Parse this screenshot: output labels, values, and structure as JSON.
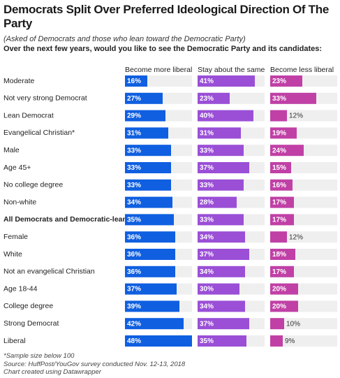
{
  "chart_data": {
    "type": "split-bar",
    "title": "Democrats Split Over Preferred Ideological Direction Of The Party",
    "subtitle": "(Asked of Democrats and those who lean toward the Democratic Party)",
    "question": "Over the next few years, would you like to see the Democratic Party and its candidates:",
    "categories": [
      "Moderate",
      "Not very strong Democrat",
      "Lean Democrat",
      "Evangelical Christian*",
      "Male",
      "Age 45+",
      "No college degree",
      "Non-white",
      "All Democrats and Democratic-leaners",
      "Female",
      "White",
      "Not an evangelical Christian",
      "Age 18-44",
      "College degree",
      "Strong Democrat",
      "Liberal"
    ],
    "highlight_index": 8,
    "series": [
      {
        "name": "Become more liberal",
        "color": "#0f5fe0",
        "values": [
          16,
          27,
          29,
          31,
          33,
          33,
          33,
          34,
          35,
          36,
          36,
          36,
          37,
          39,
          42,
          48
        ],
        "value_labels": [
          "16%",
          "27%",
          "29%",
          "31%",
          "33%",
          "33%",
          "33%",
          "34%",
          "35%",
          "36%",
          "36%",
          "36%",
          "37%",
          "39%",
          "42%",
          "48%"
        ]
      },
      {
        "name": "Stay about the same",
        "color": "#9a4fd6",
        "values": [
          41,
          23,
          40,
          31,
          33,
          37,
          33,
          28,
          33,
          34,
          37,
          34,
          30,
          34,
          37,
          35
        ],
        "value_labels": [
          "41%",
          "23%",
          "40%",
          "31%",
          "33%",
          "37%",
          "33%",
          "28%",
          "33%",
          "34%",
          "37%",
          "34%",
          "30%",
          "34%",
          "37%",
          "35%"
        ]
      },
      {
        "name": "Become less liberal",
        "color": "#c040a6",
        "values": [
          23,
          33,
          12,
          19,
          24,
          15,
          16,
          17,
          17,
          12,
          18,
          17,
          20,
          20,
          10,
          9
        ],
        "value_labels": [
          "23%",
          "33%",
          "12%",
          "19%",
          "24%",
          "15%",
          "16%",
          "17%",
          "17%",
          "12%",
          "18%",
          "17%",
          "20%",
          "20%",
          "10%",
          "9%"
        ]
      }
    ],
    "notes": [
      "*Sample size below 100",
      "Source: HuffPost/YouGov survey conducted Nov. 12-13, 2018",
      "Chart created using Datawrapper"
    ]
  }
}
